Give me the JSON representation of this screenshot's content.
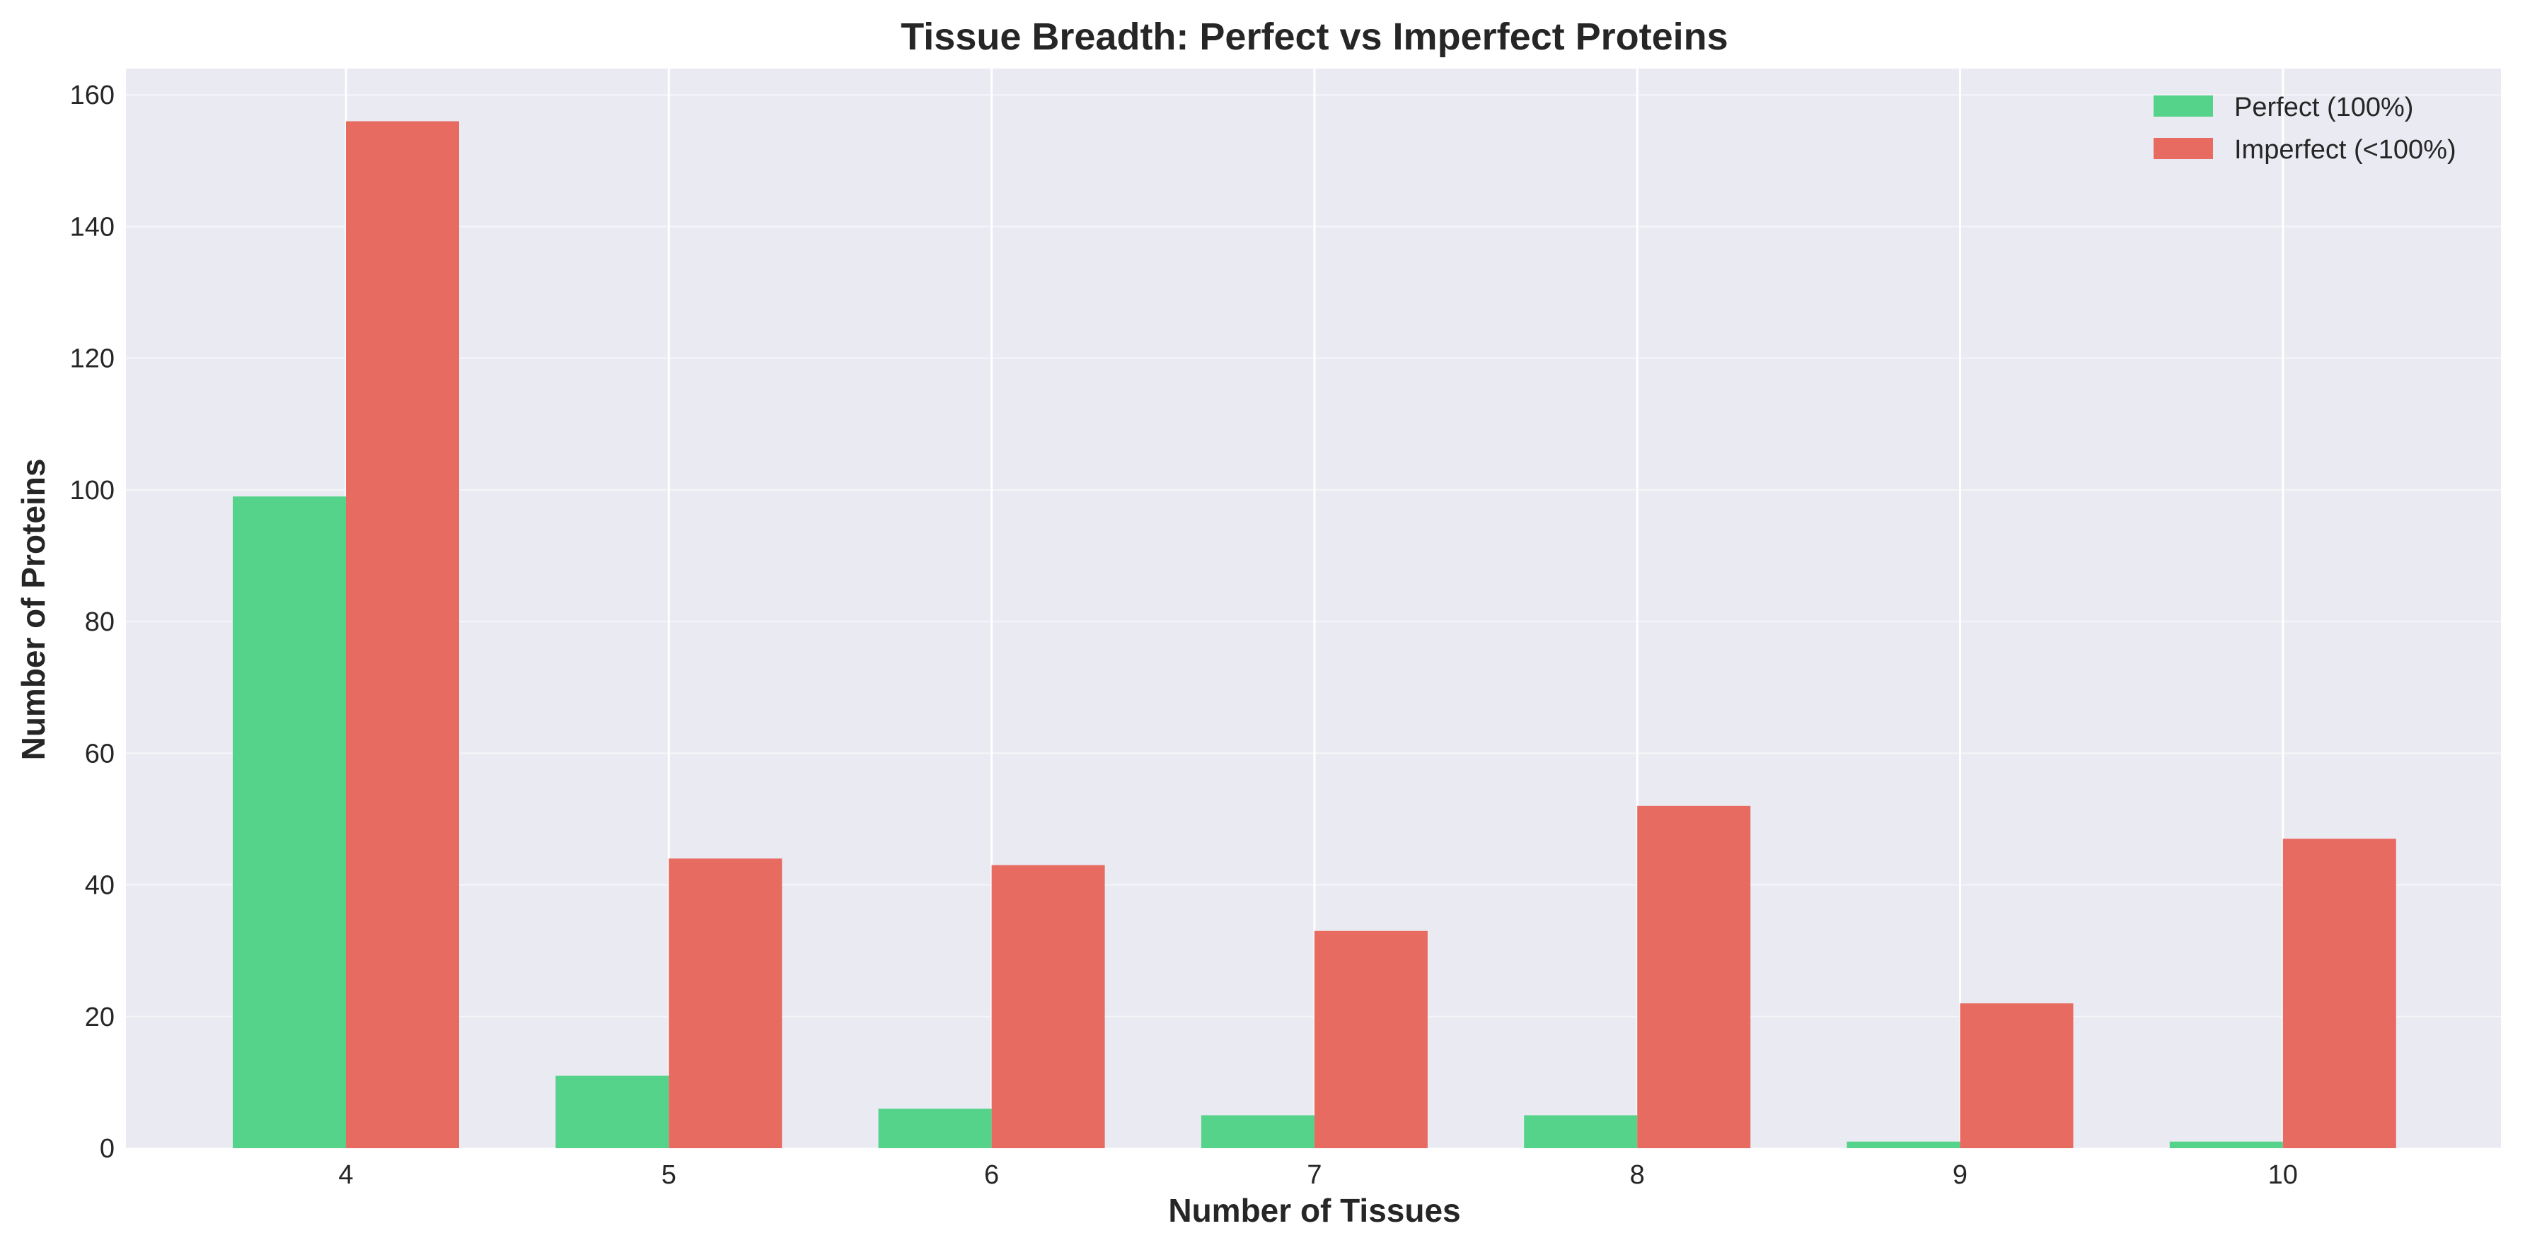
{
  "chart_data": {
    "type": "bar",
    "title": "Tissue Breadth: Perfect vs Imperfect Proteins",
    "xlabel": "Number of Tissues",
    "ylabel": "Number of Proteins",
    "categories": [
      "4",
      "5",
      "6",
      "7",
      "8",
      "9",
      "10"
    ],
    "series": [
      {
        "name": "Perfect (100%)",
        "color": "#55d38b",
        "values": [
          99,
          11,
          6,
          5,
          5,
          1,
          1
        ]
      },
      {
        "name": "Imperfect (<100%)",
        "color": "#e86b62",
        "values": [
          156,
          44,
          43,
          33,
          52,
          22,
          47
        ]
      }
    ],
    "ylim": [
      0,
      164
    ],
    "yticks": [
      0,
      20,
      40,
      60,
      80,
      100,
      120,
      140,
      160
    ],
    "grid": true,
    "legend_position": "top-right",
    "background_color": "#eaeaf2",
    "grid_color": "#ffffff"
  }
}
